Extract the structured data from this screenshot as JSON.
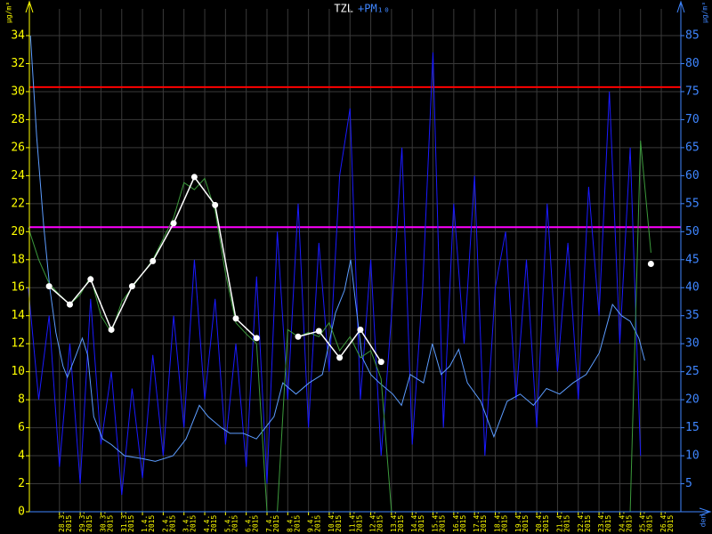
{
  "chart_data": {
    "type": "line",
    "title": "TZL",
    "title2": "+PM₁₀",
    "y_label": "µg/m³",
    "y2_label": "µg/m³",
    "x_label": "den",
    "xlim": [
      -1.45,
      30.8
    ],
    "ylim": [
      0,
      34
    ],
    "yticks": [
      0,
      2,
      4,
      6,
      8,
      10,
      12,
      14,
      16,
      18,
      20,
      22,
      24,
      26,
      28,
      30,
      32,
      34
    ],
    "y_color": "#ffff00",
    "y2lim": [
      0,
      85
    ],
    "y2ticks": [
      5,
      10,
      15,
      20,
      25,
      30,
      35,
      40,
      45,
      50,
      55,
      60,
      65,
      70,
      75,
      80,
      85
    ],
    "y2_color": "#3f86ff",
    "grid": true,
    "xticks": [
      {
        "value": 0,
        "label": "28.3. 2015"
      },
      {
        "value": 1,
        "label": "29.3. 2015"
      },
      {
        "value": 2,
        "label": "30.3. 2015"
      },
      {
        "value": 3,
        "label": "31.3. 2015"
      },
      {
        "value": 4,
        "label": "1.4. 2015"
      },
      {
        "value": 5,
        "label": "2.4. 2015"
      },
      {
        "value": 6,
        "label": "3.4. 2015"
      },
      {
        "value": 7,
        "label": "4.4. 2015"
      },
      {
        "value": 8,
        "label": "5.4. 2015"
      },
      {
        "value": 9,
        "label": "6.4. 2015"
      },
      {
        "value": 10,
        "label": "7.4. 2015"
      },
      {
        "value": 11,
        "label": "8.4. 2015"
      },
      {
        "value": 12,
        "label": "9.4. 2015"
      },
      {
        "value": 13,
        "label": "10.4. 2015"
      },
      {
        "value": 14,
        "label": "11.4. 2015"
      },
      {
        "value": 15,
        "label": "12.4. 2015"
      },
      {
        "value": 16,
        "label": "13.4. 2015"
      },
      {
        "value": 17,
        "label": "14.4. 2015"
      },
      {
        "value": 18,
        "label": "15.4. 2015"
      },
      {
        "value": 19,
        "label": "16.4. 2015"
      },
      {
        "value": 20,
        "label": "17.4. 2015"
      },
      {
        "value": 21,
        "label": "18.4. 2015"
      },
      {
        "value": 22,
        "label": "19.4. 2015"
      },
      {
        "value": 23,
        "label": "20.4. 2015"
      },
      {
        "value": 24,
        "label": "21.4. 2015"
      },
      {
        "value": 25,
        "label": "22.4. 2015"
      },
      {
        "value": 26,
        "label": "23.4. 2015"
      },
      {
        "value": 27,
        "label": "24.4. 2015"
      },
      {
        "value": 28,
        "label": "25.4. 2015"
      },
      {
        "value": 29,
        "label": "26.4. 2015"
      }
    ],
    "reference_lines": [
      {
        "value": 75.8,
        "axis": "y2",
        "color": "#ff0000"
      },
      {
        "value": 50.8,
        "axis": "y2",
        "color": "#ff00ff"
      }
    ],
    "series": [
      {
        "color": "#1a1aff",
        "axis": "y2",
        "x": [
          -1.5,
          -1,
          -0.5,
          0,
          0.5,
          1,
          1.5,
          2,
          2.5,
          3,
          3.5,
          4,
          4.5,
          5,
          5.5,
          6,
          6.5,
          7,
          7.5,
          8,
          8.5,
          9,
          9.5,
          10,
          10.5,
          11,
          11.5,
          12,
          12.5,
          13,
          13.5,
          14,
          14.5,
          15,
          15.5,
          16,
          16.5,
          17,
          17.5,
          18,
          18.5,
          19,
          19.5,
          20,
          20.5,
          21,
          21.5,
          22,
          22.5,
          23,
          23.5,
          24,
          24.5,
          25,
          25.5,
          26,
          26.5,
          27,
          27.5,
          28
        ],
        "values": [
          40,
          20,
          35,
          8,
          30,
          5,
          38,
          12,
          25,
          3,
          22,
          6,
          28,
          10,
          35,
          15,
          45,
          20,
          38,
          12,
          30,
          8,
          42,
          5,
          50,
          20,
          55,
          15,
          48,
          25,
          60,
          72,
          20,
          45,
          10,
          35,
          65,
          12,
          40,
          82,
          15,
          55,
          30,
          60,
          10,
          40,
          50,
          20,
          45,
          15,
          55,
          25,
          48,
          20,
          58,
          35,
          75,
          30,
          65,
          10
        ]
      },
      {
        "color": "#5c9cff",
        "axis": "y2",
        "x": [
          -1.4,
          -1.1,
          -0.76,
          -0.47,
          -0.17,
          0.17,
          0.38,
          0.8,
          1.1,
          1.36,
          1.65,
          2.08,
          2.5,
          3.14,
          3.98,
          4.62,
          5.47,
          6.1,
          6.74,
          7.16,
          7.8,
          8.22,
          8.86,
          9.49,
          9.92,
          10.34,
          10.76,
          11.4,
          12.03,
          12.67,
          13.3,
          13.73,
          14.03,
          14.28,
          14.58,
          15,
          15.42,
          16.06,
          16.48,
          16.9,
          17.54,
          17.97,
          18.39,
          18.81,
          19.24,
          19.66,
          20.3,
          20.93,
          21.57,
          22.2,
          22.84,
          23.47,
          24.1,
          24.75,
          25.38,
          26.02,
          26.65,
          27.08,
          27.5,
          27.92,
          28.2
        ],
        "values": [
          85,
          67,
          51,
          40,
          32,
          26,
          24,
          28,
          31,
          28,
          17,
          13,
          12,
          10,
          9.5,
          9,
          10,
          13,
          19,
          17,
          15,
          14,
          14,
          13,
          15,
          17,
          23,
          21,
          23,
          24.5,
          35.5,
          39.5,
          45,
          37,
          27.6,
          24.5,
          23,
          21,
          19,
          24.5,
          23,
          30,
          24.5,
          26,
          29,
          23,
          19.7,
          13.4,
          19.7,
          21,
          19,
          22,
          21,
          23,
          24.5,
          28.4,
          37,
          35,
          34,
          31,
          27
        ]
      },
      {
        "color": "#3c9a3c",
        "axis": "y",
        "x": [
          -1.5,
          -1,
          -0.5,
          0,
          0.5,
          1,
          1.5,
          2,
          2.5,
          3,
          3.5,
          4,
          4.5,
          5,
          5.5,
          6,
          6.5,
          7,
          7.5,
          8,
          8.5,
          9,
          9.5,
          10,
          10.5,
          11,
          11.5,
          12,
          12.5,
          13,
          13.5,
          14,
          14.5,
          15,
          15.5,
          16,
          16.5,
          17,
          17.5,
          18,
          18.5,
          19,
          19.5,
          20,
          20.5,
          21,
          21.5,
          22,
          22.5,
          23,
          23.5,
          24,
          24.5,
          25,
          25.5,
          26,
          26.5,
          27,
          27.5,
          28,
          28.5
        ],
        "values": [
          20.3,
          18,
          16.3,
          15.5,
          14.8,
          15.5,
          16.8,
          14,
          12.8,
          15,
          16,
          17,
          18,
          19.5,
          21,
          23.5,
          23,
          23.8,
          21.5,
          17,
          13.5,
          12.7,
          12,
          0,
          0,
          13,
          12.5,
          12.8,
          12.5,
          13.5,
          11.5,
          12.5,
          11,
          11.5,
          9.5,
          0,
          0,
          0,
          0,
          0,
          0,
          0,
          0,
          0,
          0,
          0,
          0,
          0,
          0,
          0,
          0,
          0,
          0,
          0,
          0,
          0,
          0,
          0,
          0,
          26.5,
          18.5
        ]
      },
      {
        "color": "#ffffff",
        "axis": "y",
        "markers": true,
        "x": [
          -0.5,
          0.5,
          1.5,
          2.5,
          3.5,
          4.5,
          5.5,
          6.5,
          7.5,
          8.5,
          9.5,
          10.5,
          11.5,
          12.5,
          13.5,
          14.5,
          15.5,
          16.5,
          17.5,
          18.5,
          19.5,
          20.5,
          21.5,
          22.5,
          23.5,
          24.5,
          25.5,
          26.5,
          27.5,
          28.5
        ],
        "values": [
          16.1,
          14.8,
          16.6,
          13.0,
          16.1,
          17.9,
          20.6,
          23.9,
          21.9,
          13.8,
          12.4,
          null,
          12.5,
          12.9,
          11.0,
          13.0,
          10.7,
          null,
          null,
          null,
          null,
          null,
          null,
          null,
          null,
          null,
          null,
          null,
          null,
          17.7
        ]
      }
    ]
  }
}
